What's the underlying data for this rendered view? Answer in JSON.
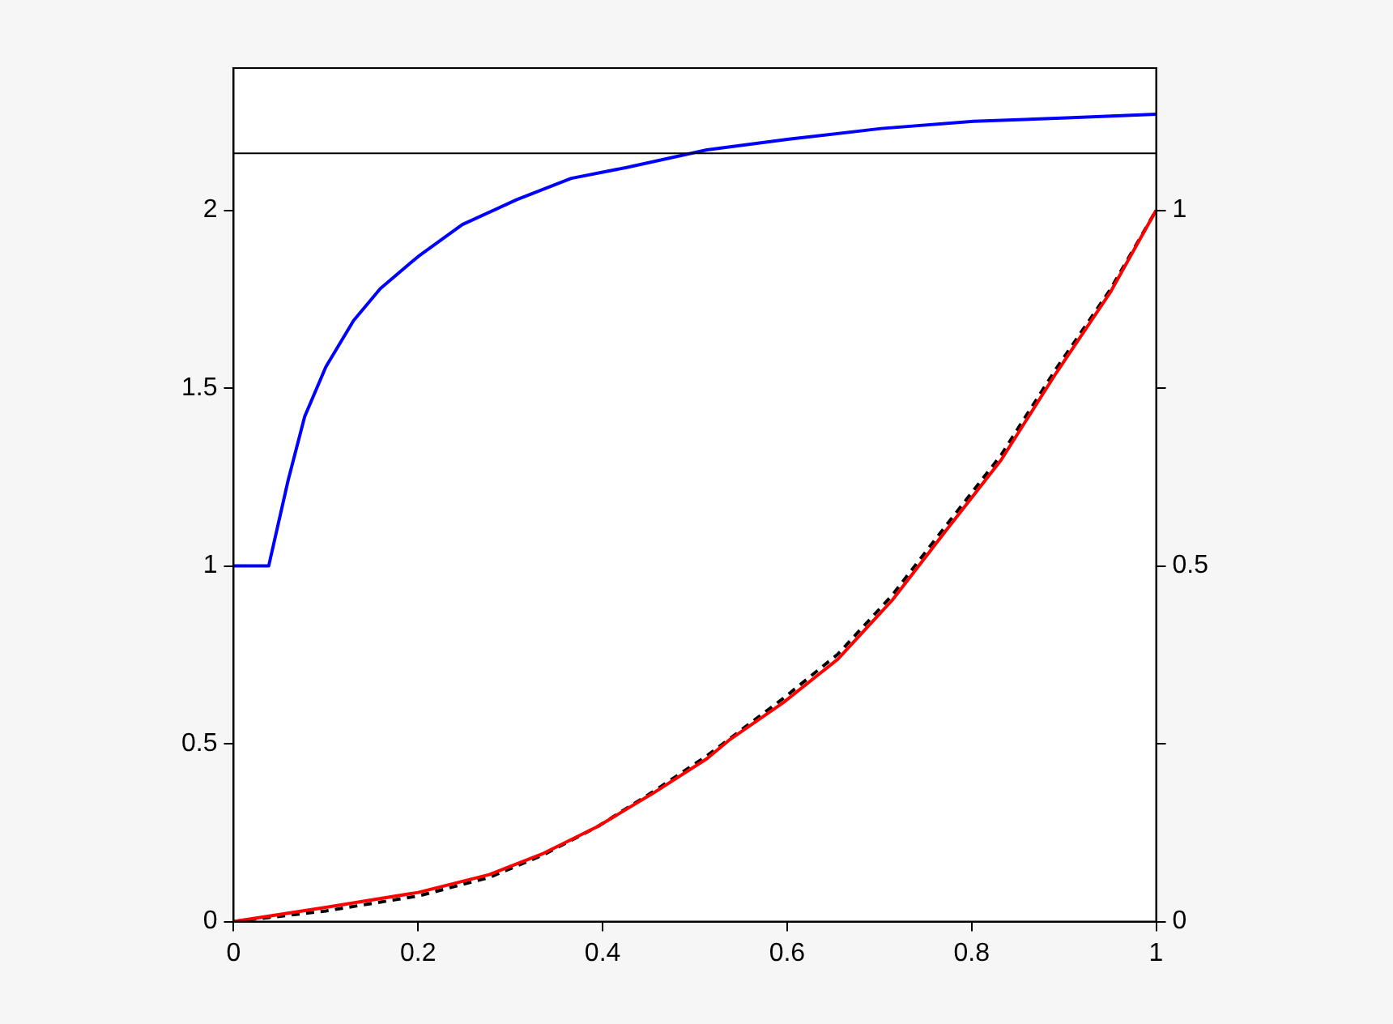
{
  "chart_data": {
    "type": "line",
    "xlim": [
      0,
      1
    ],
    "xticks": [
      0,
      0.2,
      0.4,
      0.6,
      0.8,
      1
    ],
    "ylim": [
      0,
      2.4
    ],
    "yticks": [
      0,
      0.5,
      1,
      1.5,
      2
    ],
    "y2lim": [
      0,
      1.2
    ],
    "y2ticks": [
      0,
      {
        "value": 0.25,
        "label": null
      },
      0.5,
      {
        "value": 0.75,
        "label": null
      },
      1
    ],
    "grid": false,
    "legend": false,
    "marker": "none",
    "series": [
      {
        "color": "#0000ff",
        "line_style": "solid",
        "x": [
          0,
          0.038,
          0.059,
          0.077,
          0.1,
          0.13,
          0.159,
          0.2,
          0.248,
          0.307,
          0.366,
          0.425,
          0.513,
          0.602,
          0.702,
          0.802,
          0.903,
          1
        ],
        "values": [
          1,
          1,
          1.24,
          1.42,
          1.56,
          1.69,
          1.78,
          1.87,
          1.96,
          2.03,
          2.09,
          2.12,
          2.17,
          2.2,
          2.23,
          2.25,
          2.26,
          2.27
        ]
      },
      {
        "color": "#000000",
        "line_style": "dashed",
        "axis": "y2",
        "x": [
          0,
          0.1,
          0.2,
          0.277,
          0.336,
          0.395,
          0.454,
          0.513,
          0.596,
          0.655,
          0.714,
          0.773,
          0.832,
          0.891,
          0.95,
          1
        ],
        "values": [
          0,
          0.015,
          0.036,
          0.062,
          0.094,
          0.134,
          0.182,
          0.233,
          0.314,
          0.376,
          0.459,
          0.558,
          0.656,
          0.776,
          0.888,
          1
        ]
      },
      {
        "color": "#ff0000",
        "line_style": "solid",
        "axis": "y2",
        "x": [
          0,
          0.1,
          0.2,
          0.277,
          0.336,
          0.395,
          0.454,
          0.513,
          0.537,
          0.596,
          0.655,
          0.714,
          0.773,
          0.832,
          0.891,
          0.95,
          1
        ],
        "values": [
          0,
          0.02,
          0.041,
          0.066,
          0.096,
          0.134,
          0.18,
          0.229,
          0.255,
          0.308,
          0.369,
          0.452,
          0.551,
          0.649,
          0.77,
          0.884,
          1
        ]
      }
    ],
    "ref_lines": [
      {
        "axis": "y",
        "value": 2.16,
        "color": "#000000"
      }
    ]
  }
}
